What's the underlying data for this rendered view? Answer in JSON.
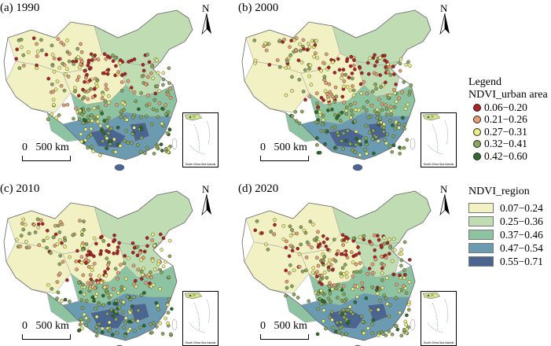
{
  "panels": [
    {
      "label": "(a) 1990"
    },
    {
      "label": "(b) 2000"
    },
    {
      "label": "(c) 2010"
    },
    {
      "label": "(d) 2020"
    }
  ],
  "scale_text": "0   500 km",
  "north_label": "N",
  "inset_caption": "South China Sea Islands",
  "legend": {
    "title": "Legend",
    "urban_title": "NDVI_urban area",
    "urban_classes": [
      {
        "range": "0.06−0.20",
        "color": "#b22222"
      },
      {
        "range": "0.21−0.26",
        "color": "#e8a070"
      },
      {
        "range": "0.27−0.31",
        "color": "#eeee80"
      },
      {
        "range": "0.32−0.41",
        "color": "#8ca85a"
      },
      {
        "range": "0.42−0.60",
        "color": "#2e6b2e"
      }
    ],
    "region_title": "NDVI_region",
    "region_classes": [
      {
        "range": "0.07−0.24",
        "color": "#f1f1c4"
      },
      {
        "range": "0.25−0.36",
        "color": "#bfdcb3"
      },
      {
        "range": "0.37−0.46",
        "color": "#8ec3a2"
      },
      {
        "range": "0.47−0.54",
        "color": "#6a9bb0"
      },
      {
        "range": "0.55−0.71",
        "color": "#4a6690"
      }
    ]
  }
}
